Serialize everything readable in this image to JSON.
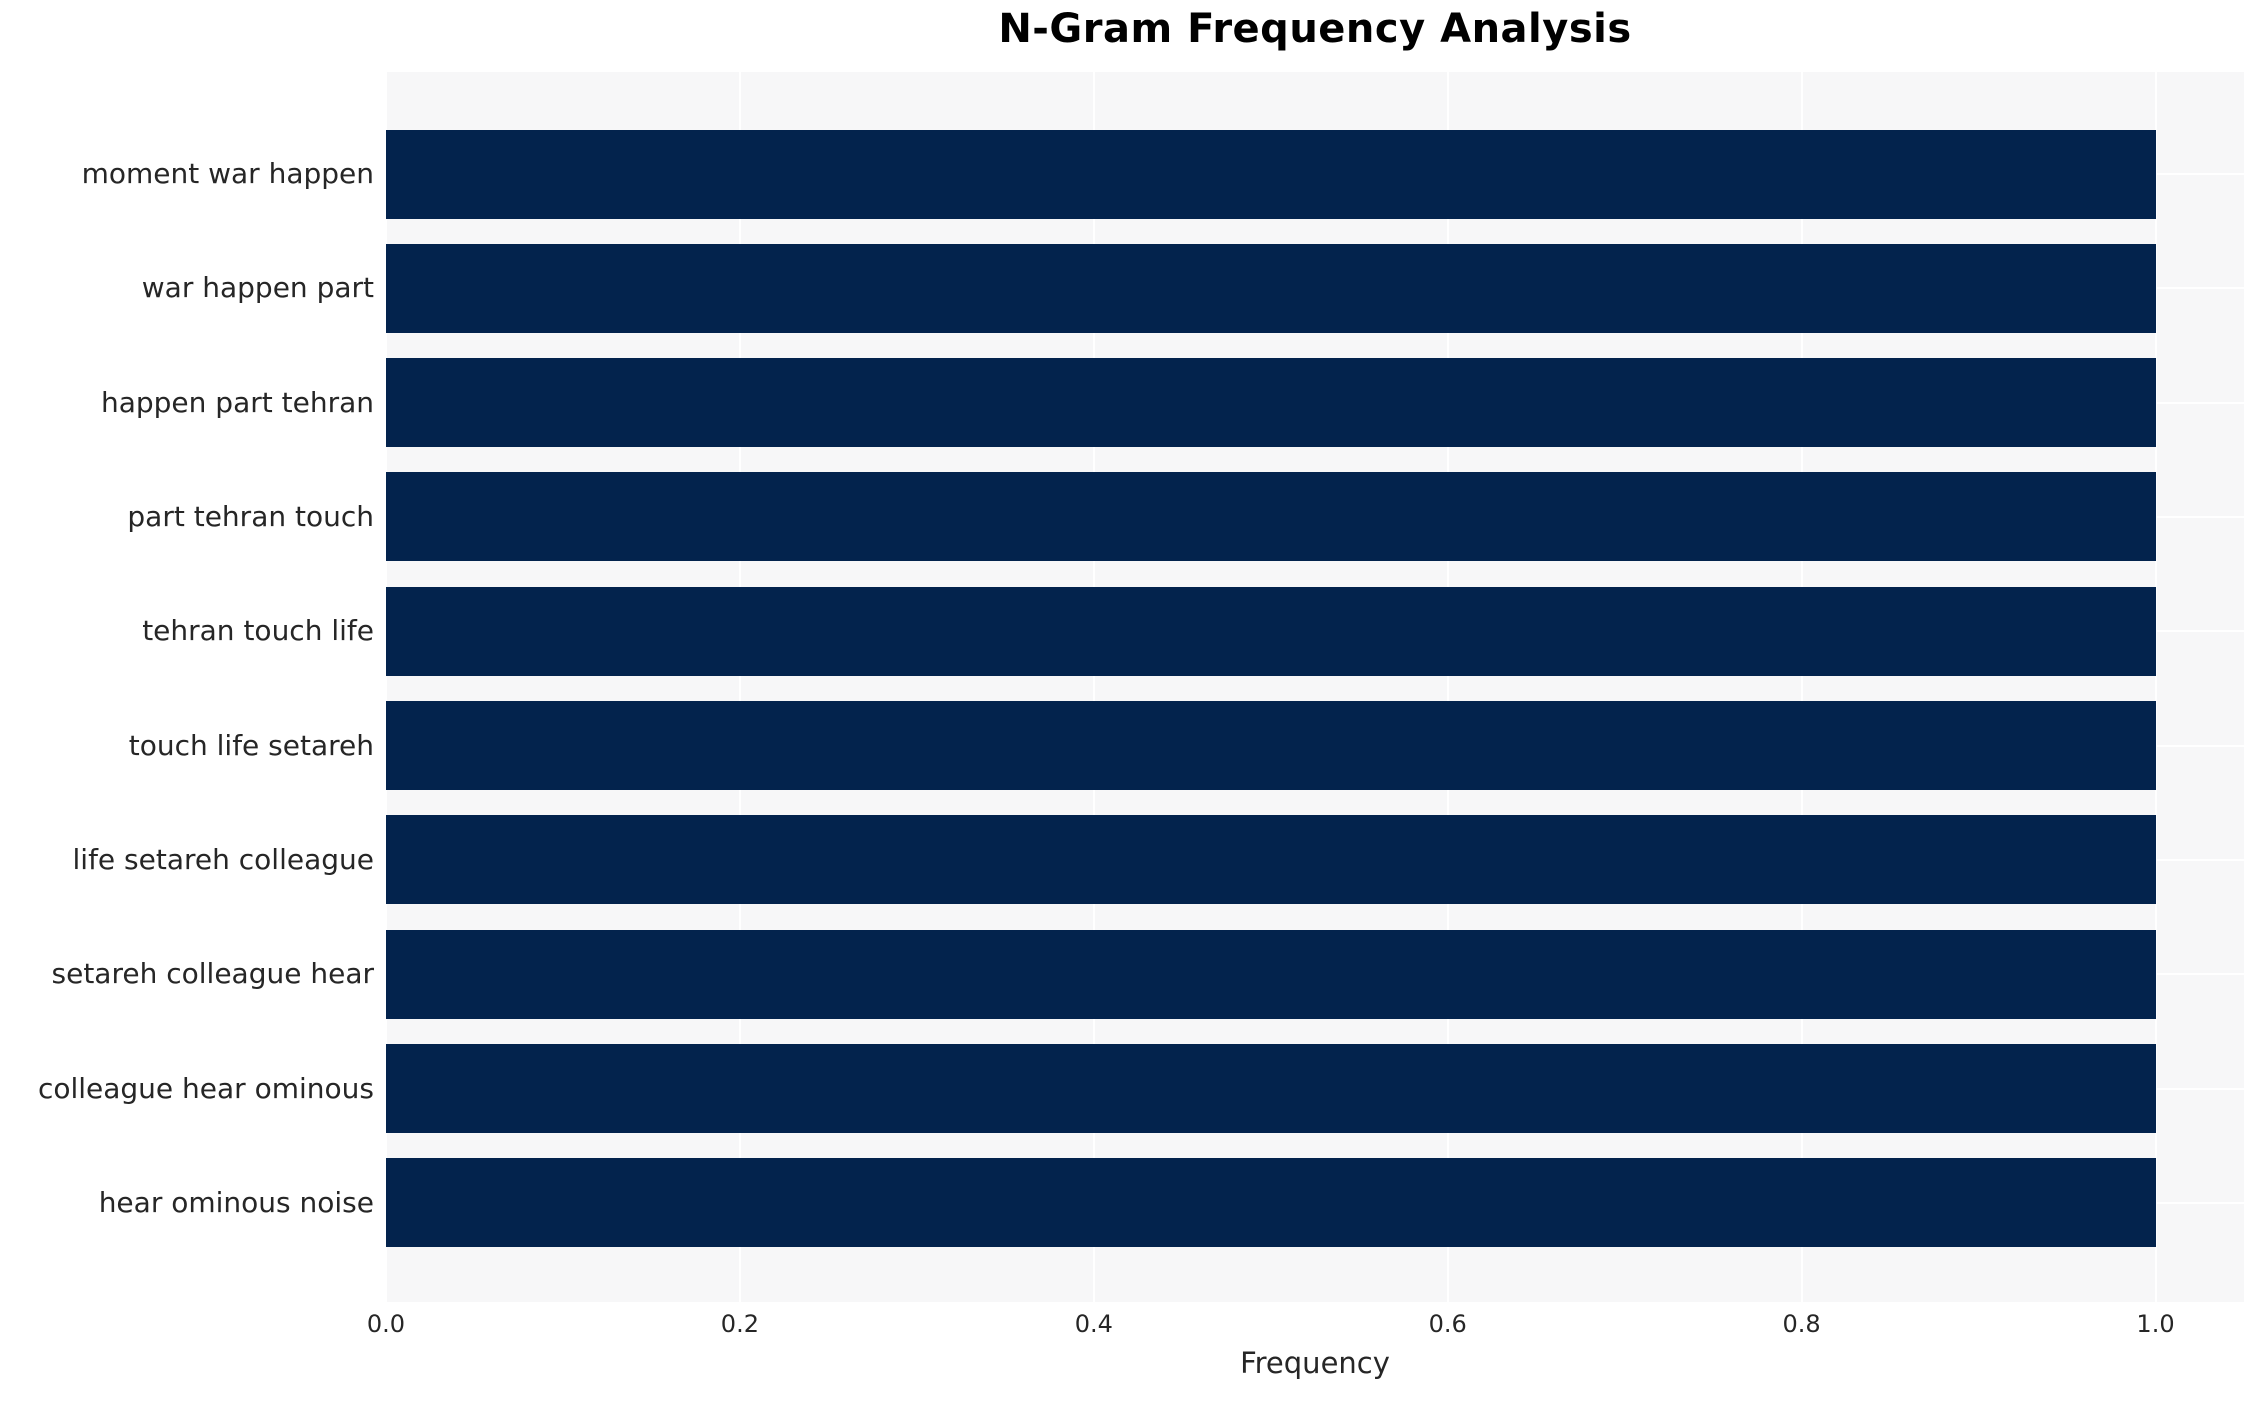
{
  "chart_data": {
    "type": "bar",
    "orientation": "horizontal",
    "title": "N-Gram Frequency Analysis",
    "xlabel": "Frequency",
    "ylabel": "",
    "categories": [
      "moment war happen",
      "war happen part",
      "happen part tehran",
      "part tehran touch",
      "tehran touch life",
      "touch life setareh",
      "life setareh colleague",
      "setareh colleague hear",
      "colleague hear ominous",
      "hear ominous noise"
    ],
    "values": [
      1.0,
      1.0,
      1.0,
      1.0,
      1.0,
      1.0,
      1.0,
      1.0,
      1.0,
      1.0
    ],
    "xlim": [
      0,
      1.05
    ],
    "xticks": {
      "labels": [
        "0.0",
        "0.2",
        "0.4",
        "0.6",
        "0.8",
        "1.0"
      ],
      "values": [
        0.0,
        0.2,
        0.4,
        0.6,
        0.8,
        1.0
      ]
    },
    "grid": true,
    "legend": false,
    "colors": {
      "bar": "#03234d",
      "plot_background": "#f7f7f8",
      "grid": "#ffffff",
      "tick_text": "#262626",
      "title_text": "#000000"
    }
  }
}
